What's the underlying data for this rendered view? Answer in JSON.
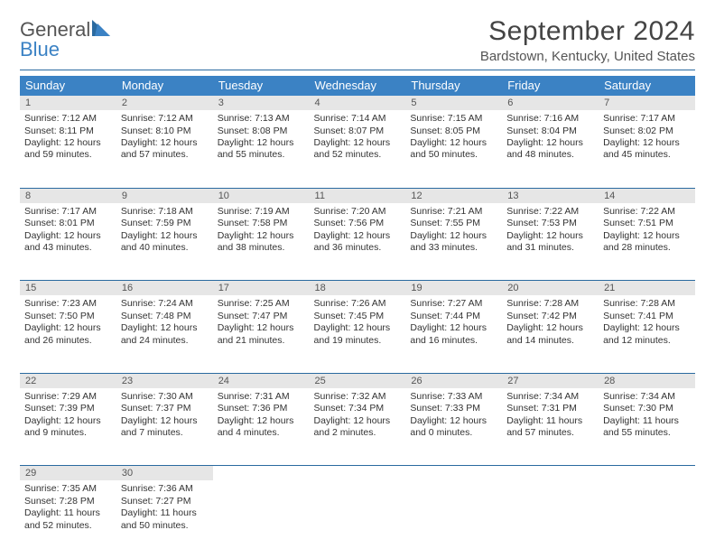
{
  "logo": {
    "text1": "General",
    "text2": "Blue"
  },
  "title": "September 2024",
  "subtitle": "Bardstown, Kentucky, United States",
  "colors": {
    "header_bg": "#3b82c4",
    "header_text": "#ffffff",
    "rule": "#2a6aa0",
    "daynum_bg": "#e6e6e6",
    "body_text": "#333333",
    "logo_gray": "#555555",
    "logo_blue": "#3b82c4",
    "page_bg": "#ffffff"
  },
  "fonts": {
    "title_size_pt": 22,
    "subtitle_size_pt": 11,
    "header_size_pt": 10,
    "cell_size_pt": 8,
    "family": "Arial"
  },
  "dayHeaders": [
    "Sunday",
    "Monday",
    "Tuesday",
    "Wednesday",
    "Thursday",
    "Friday",
    "Saturday"
  ],
  "weeks": [
    [
      {
        "n": "1",
        "sr": "Sunrise: 7:12 AM",
        "ss": "Sunset: 8:11 PM",
        "d1": "Daylight: 12 hours",
        "d2": "and 59 minutes."
      },
      {
        "n": "2",
        "sr": "Sunrise: 7:12 AM",
        "ss": "Sunset: 8:10 PM",
        "d1": "Daylight: 12 hours",
        "d2": "and 57 minutes."
      },
      {
        "n": "3",
        "sr": "Sunrise: 7:13 AM",
        "ss": "Sunset: 8:08 PM",
        "d1": "Daylight: 12 hours",
        "d2": "and 55 minutes."
      },
      {
        "n": "4",
        "sr": "Sunrise: 7:14 AM",
        "ss": "Sunset: 8:07 PM",
        "d1": "Daylight: 12 hours",
        "d2": "and 52 minutes."
      },
      {
        "n": "5",
        "sr": "Sunrise: 7:15 AM",
        "ss": "Sunset: 8:05 PM",
        "d1": "Daylight: 12 hours",
        "d2": "and 50 minutes."
      },
      {
        "n": "6",
        "sr": "Sunrise: 7:16 AM",
        "ss": "Sunset: 8:04 PM",
        "d1": "Daylight: 12 hours",
        "d2": "and 48 minutes."
      },
      {
        "n": "7",
        "sr": "Sunrise: 7:17 AM",
        "ss": "Sunset: 8:02 PM",
        "d1": "Daylight: 12 hours",
        "d2": "and 45 minutes."
      }
    ],
    [
      {
        "n": "8",
        "sr": "Sunrise: 7:17 AM",
        "ss": "Sunset: 8:01 PM",
        "d1": "Daylight: 12 hours",
        "d2": "and 43 minutes."
      },
      {
        "n": "9",
        "sr": "Sunrise: 7:18 AM",
        "ss": "Sunset: 7:59 PM",
        "d1": "Daylight: 12 hours",
        "d2": "and 40 minutes."
      },
      {
        "n": "10",
        "sr": "Sunrise: 7:19 AM",
        "ss": "Sunset: 7:58 PM",
        "d1": "Daylight: 12 hours",
        "d2": "and 38 minutes."
      },
      {
        "n": "11",
        "sr": "Sunrise: 7:20 AM",
        "ss": "Sunset: 7:56 PM",
        "d1": "Daylight: 12 hours",
        "d2": "and 36 minutes."
      },
      {
        "n": "12",
        "sr": "Sunrise: 7:21 AM",
        "ss": "Sunset: 7:55 PM",
        "d1": "Daylight: 12 hours",
        "d2": "and 33 minutes."
      },
      {
        "n": "13",
        "sr": "Sunrise: 7:22 AM",
        "ss": "Sunset: 7:53 PM",
        "d1": "Daylight: 12 hours",
        "d2": "and 31 minutes."
      },
      {
        "n": "14",
        "sr": "Sunrise: 7:22 AM",
        "ss": "Sunset: 7:51 PM",
        "d1": "Daylight: 12 hours",
        "d2": "and 28 minutes."
      }
    ],
    [
      {
        "n": "15",
        "sr": "Sunrise: 7:23 AM",
        "ss": "Sunset: 7:50 PM",
        "d1": "Daylight: 12 hours",
        "d2": "and 26 minutes."
      },
      {
        "n": "16",
        "sr": "Sunrise: 7:24 AM",
        "ss": "Sunset: 7:48 PM",
        "d1": "Daylight: 12 hours",
        "d2": "and 24 minutes."
      },
      {
        "n": "17",
        "sr": "Sunrise: 7:25 AM",
        "ss": "Sunset: 7:47 PM",
        "d1": "Daylight: 12 hours",
        "d2": "and 21 minutes."
      },
      {
        "n": "18",
        "sr": "Sunrise: 7:26 AM",
        "ss": "Sunset: 7:45 PM",
        "d1": "Daylight: 12 hours",
        "d2": "and 19 minutes."
      },
      {
        "n": "19",
        "sr": "Sunrise: 7:27 AM",
        "ss": "Sunset: 7:44 PM",
        "d1": "Daylight: 12 hours",
        "d2": "and 16 minutes."
      },
      {
        "n": "20",
        "sr": "Sunrise: 7:28 AM",
        "ss": "Sunset: 7:42 PM",
        "d1": "Daylight: 12 hours",
        "d2": "and 14 minutes."
      },
      {
        "n": "21",
        "sr": "Sunrise: 7:28 AM",
        "ss": "Sunset: 7:41 PM",
        "d1": "Daylight: 12 hours",
        "d2": "and 12 minutes."
      }
    ],
    [
      {
        "n": "22",
        "sr": "Sunrise: 7:29 AM",
        "ss": "Sunset: 7:39 PM",
        "d1": "Daylight: 12 hours",
        "d2": "and 9 minutes."
      },
      {
        "n": "23",
        "sr": "Sunrise: 7:30 AM",
        "ss": "Sunset: 7:37 PM",
        "d1": "Daylight: 12 hours",
        "d2": "and 7 minutes."
      },
      {
        "n": "24",
        "sr": "Sunrise: 7:31 AM",
        "ss": "Sunset: 7:36 PM",
        "d1": "Daylight: 12 hours",
        "d2": "and 4 minutes."
      },
      {
        "n": "25",
        "sr": "Sunrise: 7:32 AM",
        "ss": "Sunset: 7:34 PM",
        "d1": "Daylight: 12 hours",
        "d2": "and 2 minutes."
      },
      {
        "n": "26",
        "sr": "Sunrise: 7:33 AM",
        "ss": "Sunset: 7:33 PM",
        "d1": "Daylight: 12 hours",
        "d2": "and 0 minutes."
      },
      {
        "n": "27",
        "sr": "Sunrise: 7:34 AM",
        "ss": "Sunset: 7:31 PM",
        "d1": "Daylight: 11 hours",
        "d2": "and 57 minutes."
      },
      {
        "n": "28",
        "sr": "Sunrise: 7:34 AM",
        "ss": "Sunset: 7:30 PM",
        "d1": "Daylight: 11 hours",
        "d2": "and 55 minutes."
      }
    ],
    [
      {
        "n": "29",
        "sr": "Sunrise: 7:35 AM",
        "ss": "Sunset: 7:28 PM",
        "d1": "Daylight: 11 hours",
        "d2": "and 52 minutes."
      },
      {
        "n": "30",
        "sr": "Sunrise: 7:36 AM",
        "ss": "Sunset: 7:27 PM",
        "d1": "Daylight: 11 hours",
        "d2": "and 50 minutes."
      },
      null,
      null,
      null,
      null,
      null
    ]
  ]
}
